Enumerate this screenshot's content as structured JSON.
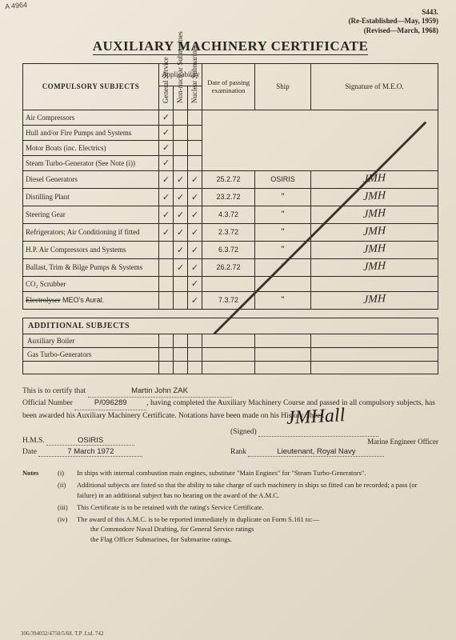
{
  "corner_mark": "A\n4964",
  "form_no": "S443.",
  "reestablished": "(Re-Established—May, 1959)",
  "revised": "(Revised—March, 1968)",
  "title": "AUXILIARY MACHINERY CERTIFICATE",
  "table": {
    "subject_header": "COMPULSORY SUBJECTS",
    "applicability_header": "Applicability",
    "applic_cols": [
      "General Service",
      "Non-nuclear Submarines",
      "Nuclear Submarines"
    ],
    "date_header": "Date of passing examination",
    "ship_header": "Ship",
    "sig_header": "Signature of M.E.O.",
    "rows": [
      {
        "subject": "Air Compressors",
        "a": [
          1,
          0,
          0
        ],
        "date": "",
        "ship": "",
        "sig": "",
        "slash": true
      },
      {
        "subject": "Hull and/or Fire Pumps and Systems",
        "a": [
          1,
          0,
          0
        ],
        "date": "",
        "ship": "",
        "sig": "",
        "slash": true
      },
      {
        "subject": "Motor Boats (inc. Electrics)",
        "a": [
          1,
          0,
          0
        ],
        "date": "",
        "ship": "",
        "sig": "",
        "slash": true
      },
      {
        "subject": "Steam Turbo-Generator (See Note (i))",
        "a": [
          1,
          0,
          0
        ],
        "date": "",
        "ship": "",
        "sig": "",
        "slash": true
      },
      {
        "subject": "Diesel Generators",
        "a": [
          1,
          1,
          1
        ],
        "date": "25.2.72",
        "ship": "OSIRIS",
        "sig": "JMH",
        "slash": false
      },
      {
        "subject": "Distilling Plant",
        "a": [
          1,
          1,
          1
        ],
        "date": "23.2.72",
        "ship": "\"",
        "sig": "JMH",
        "slash": false
      },
      {
        "subject": "Steering Gear",
        "a": [
          1,
          1,
          1
        ],
        "date": "4.3.72",
        "ship": "\"",
        "sig": "JMH",
        "slash": false
      },
      {
        "subject": "Refrigerators; Air Conditioning if fitted",
        "a": [
          1,
          1,
          1
        ],
        "date": "2.3.72",
        "ship": "\"",
        "sig": "JMH",
        "slash": false
      },
      {
        "subject": "H.P. Air Compressors and Systems",
        "a": [
          0,
          1,
          1
        ],
        "date": "6.3.72",
        "ship": "\"",
        "sig": "JMH",
        "slash": false
      },
      {
        "subject": "Ballast, Trim & Bilge Pumps & Systems",
        "a": [
          0,
          1,
          1
        ],
        "date": "26.2.72",
        "ship": "\"",
        "sig": "JMH",
        "slash": false
      },
      {
        "subject": "CO₂ Scrubber",
        "a": [
          0,
          0,
          1
        ],
        "date": "",
        "ship": "",
        "sig": "",
        "slash": false
      },
      {
        "subject": "Electrolyser",
        "strike": true,
        "subject2": " MEO's Aural.",
        "a": [
          0,
          0,
          1
        ],
        "date": "7.3.72",
        "ship": "\"",
        "sig": "JMH",
        "slash": false
      }
    ]
  },
  "additional": {
    "header": "ADDITIONAL SUBJECTS",
    "rows": [
      "Auxiliary Boiler",
      "Gas Turbo-Generators",
      ""
    ]
  },
  "certify": {
    "intro": "This is to certify that",
    "name": "Martin John ZAK",
    "offnum_label": "Official Number",
    "offnum": "P/096289",
    "body": ", having completed the Auxiliary Machinery Course and passed in all compulsory subjects, has been awarded his Auxiliary Machinery Certificate. Notations have been made on his History Sheet.",
    "hms_label": "H.M.S.",
    "hms": "OSIRIS",
    "signed_label": "(Signed)",
    "signer_title": "Marine Engineer Officer",
    "date_label": "Date",
    "date": "7 March 1972",
    "rank_label": "Rank",
    "rank": "Lieutenant, Royal Navy",
    "signature": "JMHall"
  },
  "notes": {
    "label": "Notes",
    "items": [
      {
        "num": "(i)",
        "text": "In ships with internal combustion main engines, substitute \"Main Engines\" for \"Steam Turbo-Generators\"."
      },
      {
        "num": "(ii)",
        "text": "Additional subjects are listed so that the ability to take charge of such machinery in ships so fitted can be recorded; a pass (or failure) in an additional subject has no bearing on the award of the A.M.C."
      },
      {
        "num": "(iii)",
        "text": "This Certificate is to be retained with the rating's Service Certificate."
      },
      {
        "num": "(iv)",
        "text": "The award of this A.M.C. is to be reported immediately in duplicate on Form S.161 to:—\nthe Commodore Naval Drafting, for General Service ratings\nthe Flag Officer Submarines, for Submarine ratings."
      }
    ]
  },
  "footer": "306/394032/4750/5/68. T.P .Ltd. 742",
  "colors": {
    "ink": "#2a2822",
    "paper_a": "#efe9dc",
    "paper_b": "#e6dfcf",
    "paper_c": "#dfd6c3"
  }
}
